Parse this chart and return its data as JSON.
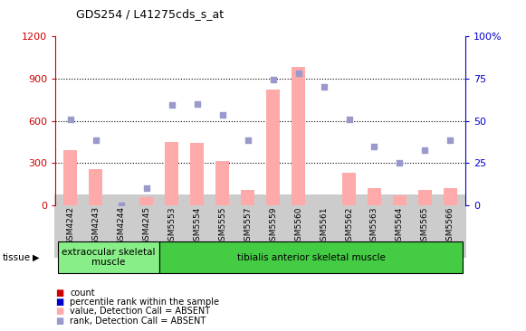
{
  "title": "GDS254 / L41275cds_s_at",
  "categories": [
    "GSM4242",
    "GSM4243",
    "GSM4244",
    "GSM4245",
    "GSM5553",
    "GSM5554",
    "GSM5555",
    "GSM5557",
    "GSM5559",
    "GSM5560",
    "GSM5561",
    "GSM5562",
    "GSM5563",
    "GSM5564",
    "GSM5565",
    "GSM5566"
  ],
  "bar_values": [
    390,
    255,
    0,
    55,
    450,
    440,
    315,
    110,
    820,
    980,
    0,
    230,
    120,
    70,
    110,
    120
  ],
  "dot_values": [
    610,
    460,
    0,
    120,
    710,
    720,
    640,
    460,
    890,
    940,
    840,
    610,
    420,
    300,
    390,
    460
  ],
  "bar_color": "#ffaaaa",
  "dot_color": "#9999cc",
  "ylim_left": [
    0,
    1200
  ],
  "ylim_right": [
    0,
    100
  ],
  "yticks_left": [
    0,
    300,
    600,
    900,
    1200
  ],
  "ytick_labels_left": [
    "0",
    "300",
    "600",
    "900",
    "1200"
  ],
  "yticks_right": [
    0,
    25,
    50,
    75,
    100
  ],
  "ytick_labels_right": [
    "0",
    "25",
    "50",
    "75",
    "100%"
  ],
  "left_axis_color": "#cc0000",
  "right_axis_color": "#0000cc",
  "tissue_groups": [
    {
      "label": "extraocular skeletal\nmuscle",
      "start": 0,
      "end": 3,
      "color": "#88ee88"
    },
    {
      "label": "tibialis anterior skeletal muscle",
      "start": 4,
      "end": 15,
      "color": "#44cc44"
    }
  ],
  "tissue_label": "tissue",
  "legend_items": [
    {
      "color": "#cc0000",
      "label": "count"
    },
    {
      "color": "#0000cc",
      "label": "percentile rank within the sample"
    },
    {
      "color": "#ffaaaa",
      "label": "value, Detection Call = ABSENT"
    },
    {
      "color": "#9999cc",
      "label": "rank, Detection Call = ABSENT"
    }
  ],
  "bg_color": "#ffffff",
  "tick_bg_color": "#cccccc",
  "grid_yticks": [
    300,
    600,
    900
  ]
}
